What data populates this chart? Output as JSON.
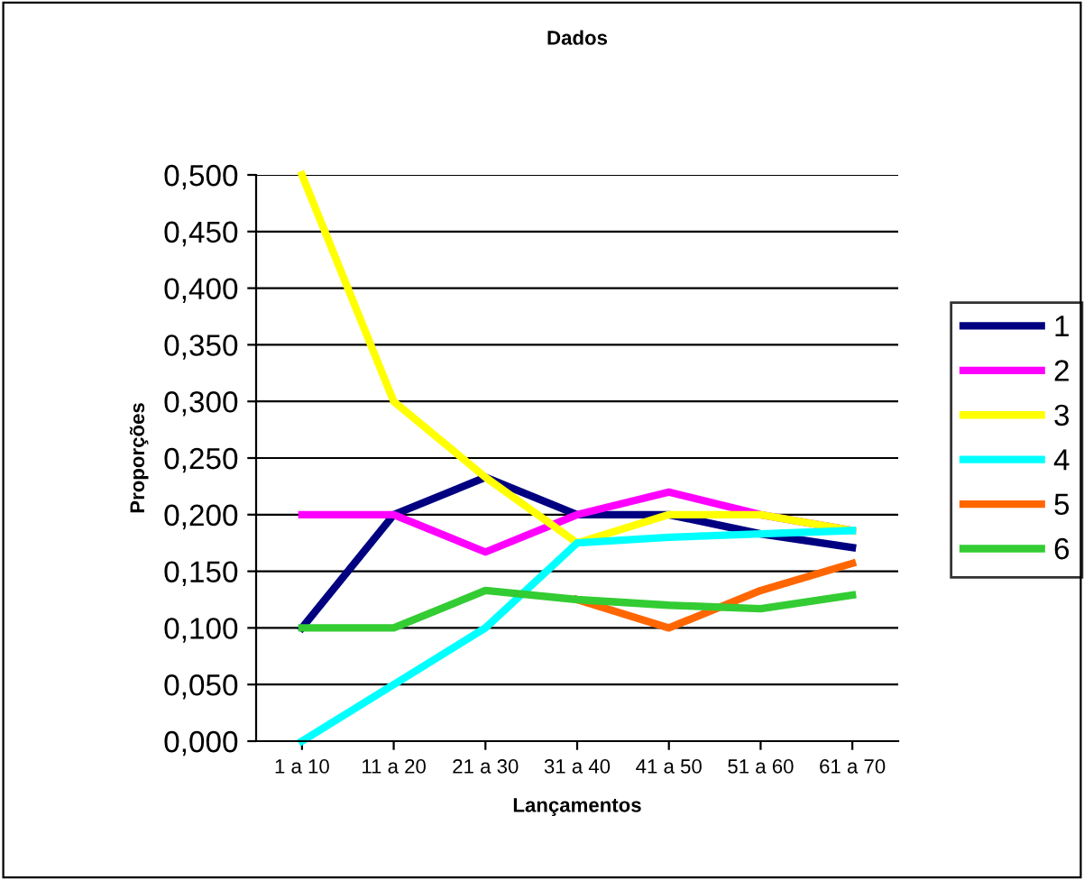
{
  "chart_data": {
    "type": "line",
    "title": "Dados",
    "xlabel": "Lançamentos",
    "ylabel": "Proporções",
    "categories": [
      "1 a 10",
      "11 a 20",
      "21 a 30",
      "31 a 40",
      "41 a 50",
      "51 a 60",
      "61 a 70"
    ],
    "series": [
      {
        "name": "1",
        "color": "#000080",
        "values": [
          0.1,
          0.2,
          0.233,
          0.2,
          0.2,
          0.183,
          0.171
        ]
      },
      {
        "name": "2",
        "color": "#ff00ff",
        "values": [
          0.2,
          0.2,
          0.167,
          0.2,
          0.22,
          0.2,
          0.186
        ]
      },
      {
        "name": "3",
        "color": "#ffff00",
        "values": [
          0.5,
          0.3,
          0.233,
          0.175,
          0.2,
          0.2,
          0.186
        ]
      },
      {
        "name": "4",
        "color": "#00ffff",
        "values": [
          0.0,
          0.05,
          0.1,
          0.175,
          0.18,
          0.183,
          0.186
        ]
      },
      {
        "name": "5",
        "color": "#ff6600",
        "values": [
          null,
          null,
          null,
          0.125,
          0.1,
          0.133,
          0.157
        ]
      },
      {
        "name": "6",
        "color": "#33cc33",
        "values": [
          0.1,
          0.1,
          0.133,
          0.125,
          0.12,
          0.117,
          0.129
        ]
      }
    ],
    "ylim": [
      0,
      0.5
    ],
    "yticks": [
      {
        "value": 0,
        "label": "0,000"
      },
      {
        "value": 0.05,
        "label": "0,050"
      },
      {
        "value": 0.1,
        "label": "0,100"
      },
      {
        "value": 0.15,
        "label": "0,150"
      },
      {
        "value": 0.2,
        "label": "0,200"
      },
      {
        "value": 0.25,
        "label": "0,250"
      },
      {
        "value": 0.3,
        "label": "0,300"
      },
      {
        "value": 0.35,
        "label": "0,350"
      },
      {
        "value": 0.4,
        "label": "0,400"
      },
      {
        "value": 0.45,
        "label": "0,450"
      },
      {
        "value": 0.5,
        "label": "0,500"
      }
    ],
    "grid": "y",
    "legend": "right",
    "marker": "none",
    "line_style": "solid"
  }
}
